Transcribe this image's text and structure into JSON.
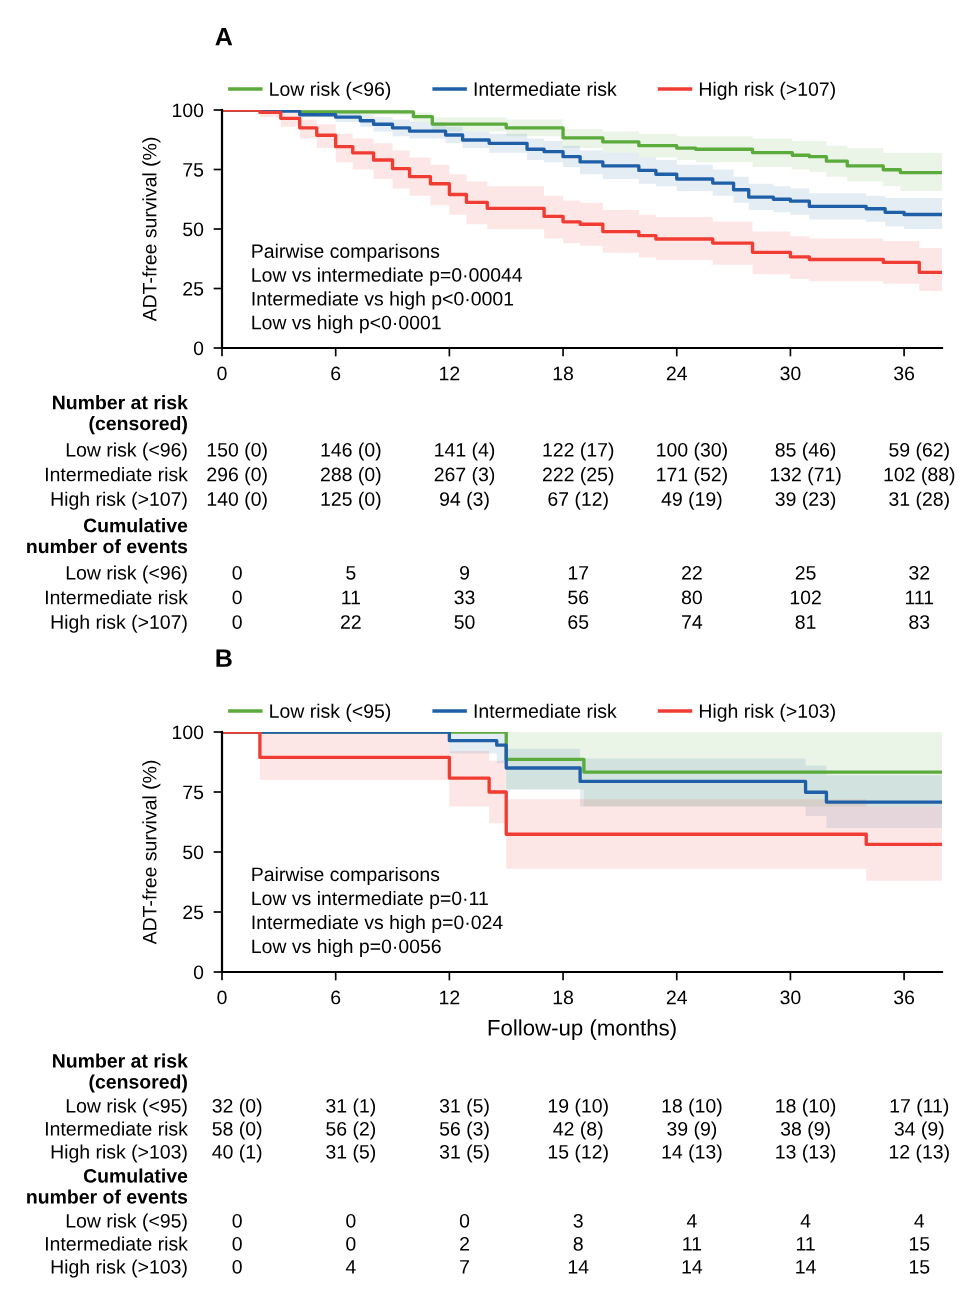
{
  "chart_data": [
    {
      "type": "step",
      "title": "A",
      "ylabel": "ADT-free survival (%)",
      "xlim": [
        0,
        38
      ],
      "xticks": [
        0,
        6,
        12,
        18,
        24,
        30,
        36
      ],
      "ylim": [
        0,
        100
      ],
      "yticks": [
        0,
        25,
        50,
        75,
        100
      ],
      "grid": false,
      "legend": "top",
      "annotations": [
        "Pairwise comparisons",
        "Low vs intermediate p=0·00044",
        "Intermediate vs high p<0·0001",
        "Low vs high p<0·0001"
      ],
      "series": [
        {
          "name": "Low risk (<96)",
          "color": "#5aaa3c",
          "x": [
            0,
            4.1,
            10.1,
            11.1,
            15,
            18,
            20.1,
            22,
            24,
            25,
            28,
            30.1,
            31,
            31.9,
            33,
            34.9,
            35.8,
            38
          ],
          "values": [
            100,
            99.2,
            97.2,
            94.1,
            92.5,
            88.3,
            86.6,
            85,
            84,
            83.5,
            82.1,
            81,
            80.4,
            78.5,
            76.5,
            74.9,
            73.7,
            73.7
          ],
          "lower": [
            100,
            98,
            95,
            91,
            89,
            84,
            82,
            80,
            79,
            78,
            76,
            75,
            74,
            72,
            70,
            68,
            66,
            66
          ],
          "upper": [
            100,
            100,
            99,
            97,
            96,
            92,
            91,
            90,
            89,
            89,
            88,
            87,
            87,
            85,
            84,
            82,
            82,
            82
          ]
        },
        {
          "name": "Intermediate risk",
          "color": "#1f5fa8",
          "x": [
            0,
            2,
            4.1,
            6,
            7.3,
            8,
            9,
            9.9,
            11.8,
            12.7,
            14.1,
            16.1,
            17,
            18,
            18.9,
            20.1,
            22,
            22.9,
            24,
            25.9,
            27,
            27.8,
            29.1,
            30,
            31,
            34,
            35,
            36,
            38
          ],
          "values": [
            100,
            99.5,
            98,
            97,
            95.5,
            94,
            92.5,
            91.1,
            89.5,
            87.4,
            86,
            83.5,
            82.5,
            80.4,
            78.2,
            76.5,
            74.6,
            73,
            71,
            69.3,
            66.5,
            63.4,
            62.5,
            61.7,
            59.5,
            58.5,
            57,
            56.1,
            56.1
          ],
          "lower": [
            100,
            99,
            97,
            95,
            93,
            91,
            89,
            88,
            86,
            84,
            82,
            79,
            78,
            76,
            73,
            71,
            69,
            68,
            66,
            64,
            61,
            58,
            57,
            56,
            54,
            53,
            51,
            50,
            49
          ],
          "upper": [
            100,
            100,
            99,
            99,
            98,
            97,
            96,
            95,
            93,
            91,
            90,
            88,
            87,
            85,
            83,
            82,
            80,
            79,
            77,
            75,
            72,
            69,
            68,
            67,
            65,
            64,
            63,
            63,
            63
          ]
        },
        {
          "name": "High risk (>107)",
          "color": "#f03c32",
          "x": [
            0,
            2,
            3.1,
            4.1,
            5,
            6,
            6.9,
            8,
            9,
            9.9,
            11,
            12,
            12.9,
            14,
            17,
            18,
            18.9,
            20.1,
            22,
            22.9,
            25.9,
            28,
            30,
            31,
            34.9,
            36.8,
            38
          ],
          "values": [
            100,
            99,
            96.5,
            92.5,
            89.4,
            84.6,
            82,
            79,
            75.4,
            72,
            69,
            64.5,
            61.2,
            58.7,
            55.3,
            53,
            52,
            48.9,
            47.2,
            45.8,
            44.1,
            40.2,
            38.3,
            37.2,
            36,
            31.8,
            31.8
          ],
          "lower": [
            100,
            97,
            93,
            88,
            84,
            78,
            75,
            71,
            67,
            64,
            60,
            56,
            52,
            50,
            46,
            44,
            43,
            40,
            38,
            37,
            35,
            31,
            29,
            28,
            27,
            24,
            24
          ],
          "upper": [
            100,
            100,
            99,
            96,
            94,
            90,
            88,
            86,
            83,
            80,
            77,
            73,
            70,
            68,
            64,
            62,
            61,
            58,
            56,
            55,
            53,
            49,
            47,
            46,
            45,
            42,
            42
          ]
        }
      ]
    },
    {
      "type": "other",
      "y_categories": [
        "Number at risk\n(censored)",
        "Low risk (<96)",
        "Intermediate risk",
        "High risk (>107)",
        "Cumulative\nnumber of events",
        "Low risk (<96)",
        "Intermediate risk",
        "High risk (>107)"
      ],
      "cell_labels": [
        null,
        [
          "150 (0)",
          "146 (0)",
          "141 (4)",
          "122 (17)",
          "100 (30)",
          "85 (46)",
          "59 (62)"
        ],
        [
          "296 (0)",
          "288 (0)",
          "267 (3)",
          "222 (25)",
          "171 (52)",
          "132 (71)",
          "102 (88)"
        ],
        [
          "140 (0)",
          "125 (0)",
          "94 (3)",
          "67 (12)",
          "49 (19)",
          "39 (23)",
          "31 (28)"
        ],
        null,
        [
          "0",
          "5",
          "9",
          "17",
          "22",
          "25",
          "32"
        ],
        [
          "0",
          "11",
          "33",
          "56",
          "80",
          "102",
          "111"
        ],
        [
          "0",
          "22",
          "50",
          "65",
          "74",
          "81",
          "83"
        ]
      ]
    },
    {
      "type": "step",
      "title": "B",
      "ylabel": "ADT-free survival (%)",
      "xlabel": "Follow-up (months)",
      "xlim": [
        0,
        38
      ],
      "xticks": [
        0,
        6,
        12,
        18,
        24,
        30,
        36
      ],
      "ylim": [
        0,
        100
      ],
      "yticks": [
        0,
        25,
        50,
        75,
        100
      ],
      "grid": false,
      "legend": "top",
      "annotations": [
        "Pairwise comparisons",
        "Low vs intermediate p=0·11",
        "Intermediate vs high p=0·024",
        "Low vs high p=0·0056"
      ],
      "series": [
        {
          "name": "Low risk (<95)",
          "color": "#5aaa3c",
          "x": [
            0,
            15,
            19.1,
            38
          ],
          "values": [
            100,
            88.6,
            83.3,
            83.3
          ],
          "lower": [
            100,
            76,
            69,
            69
          ],
          "upper": [
            100,
            100,
            100,
            100
          ]
        },
        {
          "name": "Intermediate risk",
          "color": "#1f5fa8",
          "x": [
            0,
            12,
            14.5,
            15,
            18.9,
            30.8,
            31.9,
            38
          ],
          "values": [
            100,
            96.4,
            94.5,
            85,
            79.4,
            74.9,
            70.8,
            70.8
          ],
          "lower": [
            100,
            91,
            87,
            76,
            69,
            65,
            60,
            60
          ],
          "upper": [
            100,
            100,
            100,
            93,
            89,
            86,
            82,
            82
          ]
        },
        {
          "name": "High risk (>103)",
          "color": "#f03c32",
          "x": [
            0,
            2,
            12,
            14.1,
            15,
            34,
            38
          ],
          "values": [
            100,
            89.4,
            80.8,
            75,
            57.4,
            53.2,
            53.2
          ],
          "lower": [
            100,
            80,
            69,
            62,
            43,
            38,
            38
          ],
          "upper": [
            100,
            100,
            92,
            88,
            72,
            69,
            69
          ]
        }
      ]
    },
    {
      "type": "other",
      "y_categories": [
        "Number at risk\n(censored)",
        "Low risk (<95)",
        "Intermediate risk",
        "High risk (>103)",
        "Cumulative\nnumber of events",
        "Low risk (<95)",
        "Intermediate risk",
        "High risk (>103)"
      ],
      "cell_labels": [
        null,
        [
          "32 (0)",
          "31 (1)",
          "31 (5)",
          "19 (10)",
          "18 (10)",
          "18 (10)",
          "17 (11)"
        ],
        [
          "58 (0)",
          "56 (2)",
          "56 (3)",
          "42 (8)",
          "39 (9)",
          "38 (9)",
          "34 (9)"
        ],
        [
          "40 (1)",
          "31 (5)",
          "31 (5)",
          "15 (12)",
          "14 (13)",
          "13 (13)",
          "12 (13)"
        ],
        null,
        [
          "0",
          "0",
          "0",
          "3",
          "4",
          "4",
          "4"
        ],
        [
          "0",
          "0",
          "2",
          "8",
          "11",
          "11",
          "15"
        ],
        [
          "0",
          "4",
          "7",
          "14",
          "14",
          "14",
          "15"
        ]
      ]
    }
  ]
}
